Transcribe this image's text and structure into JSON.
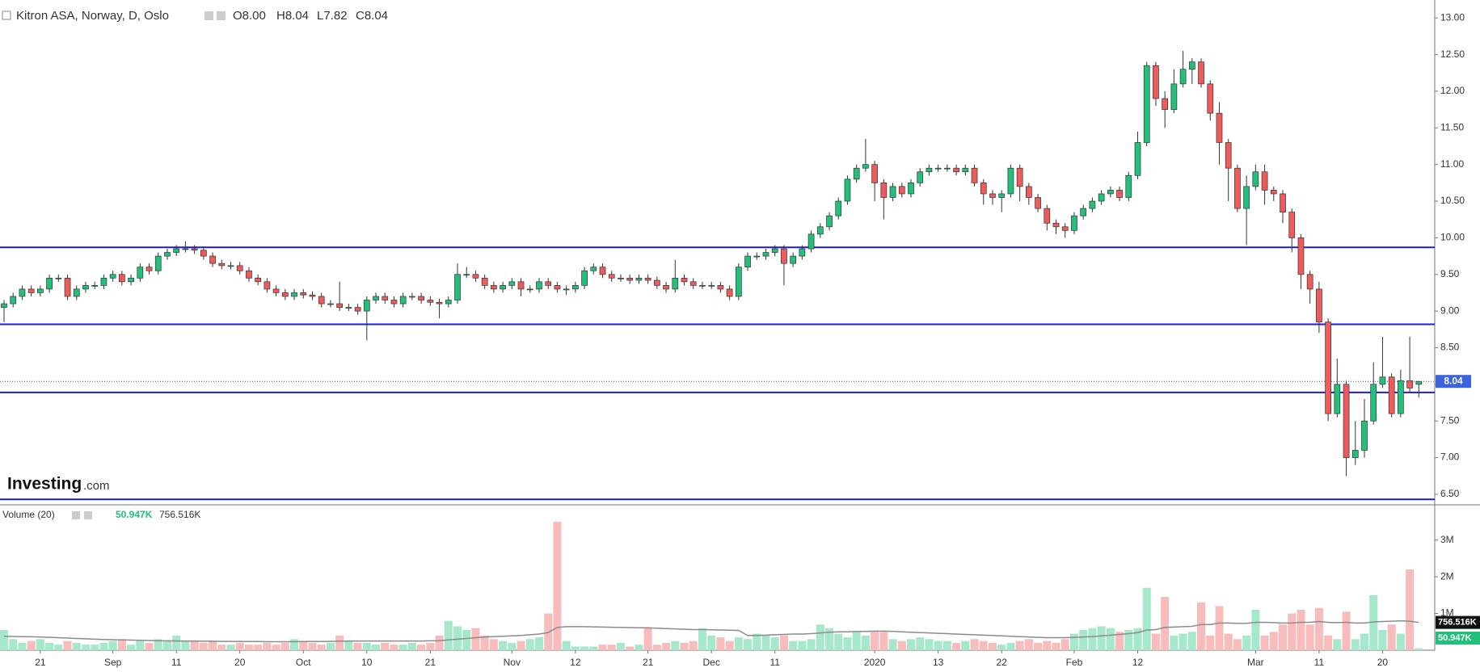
{
  "header": {
    "title": "Kitron ASA, Norway, D, Oslo",
    "ohlc": [
      "O8.00",
      "H8.04",
      "L7.82",
      "C8.04"
    ]
  },
  "logo": {
    "brand": "Investing",
    "suffix": ".com"
  },
  "chart_data": [
    {
      "type": "candlestick",
      "up_color": "#22c07a",
      "down_color": "#ef5a5a",
      "edge_color": "#333333",
      "open": [
        9.05,
        9.1,
        9.2,
        9.3,
        9.25,
        9.3,
        9.45,
        9.45,
        9.2,
        9.3,
        9.35,
        9.35,
        9.45,
        9.5,
        9.4,
        9.45,
        9.6,
        9.55,
        9.75,
        9.8,
        9.85,
        9.85,
        9.83,
        9.75,
        9.65,
        9.62,
        9.62,
        9.55,
        9.45,
        9.4,
        9.3,
        9.25,
        9.2,
        9.25,
        9.22,
        9.2,
        9.1,
        9.1,
        9.05,
        9.05,
        9.0,
        9.15,
        9.2,
        9.15,
        9.1,
        9.2,
        9.2,
        9.15,
        9.12,
        9.1,
        9.15,
        9.5,
        9.5,
        9.45,
        9.35,
        9.3,
        9.35,
        9.4,
        9.3,
        9.3,
        9.4,
        9.35,
        9.3,
        9.3,
        9.35,
        9.55,
        9.6,
        9.5,
        9.45,
        9.45,
        9.42,
        9.45,
        9.42,
        9.35,
        9.3,
        9.45,
        9.4,
        9.35,
        9.35,
        9.35,
        9.3,
        9.2,
        9.6,
        9.75,
        9.75,
        9.8,
        9.85,
        9.65,
        9.75,
        9.85,
        10.05,
        10.15,
        10.3,
        10.5,
        10.8,
        10.95,
        11.0,
        10.75,
        10.55,
        10.7,
        10.6,
        10.75,
        10.9,
        10.95,
        10.95,
        10.95,
        10.9,
        10.95,
        10.75,
        10.6,
        10.55,
        10.6,
        10.95,
        10.7,
        10.55,
        10.4,
        10.2,
        10.15,
        10.1,
        10.3,
        10.4,
        10.5,
        10.6,
        10.65,
        10.55,
        10.85,
        11.3,
        12.35,
        11.9,
        11.75,
        12.1,
        12.3,
        12.4,
        12.1,
        11.7,
        11.3,
        10.95,
        10.4,
        10.7,
        10.9,
        10.65,
        10.6,
        10.35,
        10.0,
        9.5,
        9.3,
        8.85,
        7.6,
        8.0,
        7.0,
        7.1,
        7.5,
        8.0,
        8.1,
        7.6,
        8.05,
        8.0
      ],
      "high": [
        9.15,
        9.25,
        9.35,
        9.35,
        9.35,
        9.5,
        9.5,
        9.5,
        9.35,
        9.4,
        9.4,
        9.5,
        9.55,
        9.55,
        9.5,
        9.65,
        9.65,
        9.8,
        9.85,
        9.9,
        9.95,
        9.9,
        9.88,
        9.8,
        9.7,
        9.67,
        9.67,
        9.6,
        9.5,
        9.45,
        9.35,
        9.3,
        9.3,
        9.3,
        9.27,
        9.25,
        9.15,
        9.4,
        9.1,
        9.1,
        9.2,
        9.25,
        9.25,
        9.2,
        9.25,
        9.25,
        9.25,
        9.2,
        9.17,
        9.2,
        9.65,
        9.6,
        9.55,
        9.5,
        9.4,
        9.4,
        9.45,
        9.45,
        9.35,
        9.45,
        9.45,
        9.4,
        9.35,
        9.4,
        9.6,
        9.65,
        9.65,
        9.55,
        9.5,
        9.5,
        9.5,
        9.5,
        9.47,
        9.4,
        9.7,
        9.5,
        9.45,
        9.4,
        9.4,
        9.4,
        9.35,
        9.65,
        9.8,
        9.8,
        9.85,
        9.9,
        9.9,
        9.8,
        9.9,
        10.1,
        10.2,
        10.35,
        10.55,
        10.85,
        11.0,
        11.35,
        11.05,
        10.8,
        10.75,
        10.75,
        10.8,
        10.95,
        11.0,
        11.0,
        11.0,
        11.0,
        11.0,
        11.0,
        10.8,
        10.65,
        10.65,
        11.0,
        11.0,
        10.75,
        10.6,
        10.45,
        10.25,
        10.2,
        10.35,
        10.45,
        10.55,
        10.65,
        10.7,
        10.7,
        10.9,
        11.45,
        12.4,
        12.4,
        12.0,
        12.3,
        12.55,
        12.45,
        12.45,
        12.15,
        11.85,
        11.35,
        11.0,
        10.85,
        11.0,
        11.0,
        10.7,
        10.65,
        10.4,
        10.05,
        9.55,
        9.4,
        8.9,
        8.35,
        8.05,
        7.5,
        7.8,
        8.3,
        8.65,
        8.15,
        8.2,
        8.65,
        8.04
      ],
      "low": [
        8.85,
        9.05,
        9.15,
        9.2,
        9.2,
        9.25,
        9.4,
        9.15,
        9.15,
        9.25,
        9.3,
        9.3,
        9.4,
        9.35,
        9.35,
        9.4,
        9.5,
        9.5,
        9.7,
        9.75,
        9.8,
        9.78,
        9.7,
        9.6,
        9.57,
        9.57,
        9.5,
        9.4,
        9.35,
        9.25,
        9.2,
        9.15,
        9.15,
        9.17,
        9.15,
        9.05,
        9.05,
        9.0,
        9.0,
        8.95,
        8.6,
        9.1,
        9.1,
        9.05,
        9.05,
        9.15,
        9.1,
        9.07,
        8.9,
        9.05,
        9.1,
        9.45,
        9.4,
        9.3,
        9.25,
        9.25,
        9.3,
        9.2,
        9.25,
        9.25,
        9.3,
        9.25,
        9.22,
        9.25,
        9.3,
        9.5,
        9.45,
        9.4,
        9.4,
        9.37,
        9.37,
        9.37,
        9.3,
        9.25,
        9.25,
        9.35,
        9.3,
        9.3,
        9.3,
        9.25,
        9.15,
        9.15,
        9.55,
        9.7,
        9.7,
        9.75,
        9.35,
        9.6,
        9.7,
        9.8,
        10.0,
        10.1,
        10.25,
        10.45,
        10.75,
        10.9,
        10.5,
        10.25,
        10.5,
        10.55,
        10.55,
        10.7,
        10.85,
        10.9,
        10.9,
        10.85,
        10.85,
        10.7,
        10.45,
        10.45,
        10.35,
        10.55,
        10.5,
        10.45,
        10.35,
        10.1,
        10.05,
        10.0,
        10.05,
        10.25,
        10.35,
        10.45,
        10.55,
        10.5,
        10.5,
        10.8,
        11.25,
        11.8,
        11.5,
        11.7,
        12.05,
        12.1,
        12.05,
        11.6,
        11.0,
        10.5,
        10.35,
        9.9,
        10.65,
        10.45,
        10.5,
        10.2,
        9.8,
        9.3,
        9.1,
        8.7,
        7.5,
        7.55,
        6.75,
        6.9,
        7.0,
        7.45,
        7.95,
        7.55,
        7.55,
        7.9,
        7.82
      ],
      "close": [
        9.1,
        9.2,
        9.3,
        9.25,
        9.3,
        9.45,
        9.45,
        9.2,
        9.3,
        9.35,
        9.35,
        9.45,
        9.5,
        9.4,
        9.45,
        9.6,
        9.55,
        9.75,
        9.8,
        9.85,
        9.85,
        9.83,
        9.75,
        9.65,
        9.62,
        9.62,
        9.55,
        9.45,
        9.4,
        9.3,
        9.25,
        9.2,
        9.25,
        9.22,
        9.2,
        9.1,
        9.1,
        9.05,
        9.05,
        9.0,
        9.15,
        9.2,
        9.15,
        9.1,
        9.2,
        9.2,
        9.15,
        9.12,
        9.1,
        9.15,
        9.5,
        9.5,
        9.45,
        9.35,
        9.3,
        9.35,
        9.4,
        9.3,
        9.3,
        9.4,
        9.35,
        9.3,
        9.3,
        9.35,
        9.55,
        9.6,
        9.5,
        9.45,
        9.45,
        9.42,
        9.45,
        9.42,
        9.35,
        9.3,
        9.45,
        9.4,
        9.35,
        9.35,
        9.35,
        9.3,
        9.2,
        9.6,
        9.75,
        9.75,
        9.8,
        9.85,
        9.65,
        9.75,
        9.85,
        10.05,
        10.15,
        10.3,
        10.5,
        10.8,
        10.95,
        11.0,
        10.75,
        10.55,
        10.7,
        10.6,
        10.75,
        10.9,
        10.95,
        10.95,
        10.95,
        10.9,
        10.95,
        10.75,
        10.6,
        10.55,
        10.6,
        10.95,
        10.7,
        10.55,
        10.4,
        10.2,
        10.15,
        10.1,
        10.3,
        10.4,
        10.5,
        10.6,
        10.65,
        10.55,
        10.85,
        11.3,
        12.35,
        11.9,
        11.75,
        12.1,
        12.3,
        12.4,
        12.1,
        11.7,
        11.3,
        10.95,
        10.4,
        10.7,
        10.9,
        10.65,
        10.6,
        10.35,
        10.0,
        9.5,
        9.3,
        8.85,
        7.6,
        8.0,
        7.0,
        7.1,
        7.5,
        8.0,
        8.1,
        7.6,
        8.05,
        7.95,
        8.04
      ],
      "last_label": "8.04",
      "last_color": "#3b63dc",
      "levels": [
        9.87,
        8.82,
        7.89,
        6.43
      ],
      "level_color": "#1c1cdc",
      "ylim": [
        6.4,
        13.245
      ],
      "yticks": [
        {
          "value": 6.5,
          "label": "6.50"
        },
        {
          "value": 7.0,
          "label": "7.00"
        },
        {
          "value": 7.5,
          "label": "7.50"
        },
        {
          "value": 8.0,
          "label": "8.00"
        },
        {
          "value": 8.5,
          "label": "8.50"
        },
        {
          "value": 9.0,
          "label": "9.00"
        },
        {
          "value": 9.5,
          "label": "9.50"
        },
        {
          "value": 10.0,
          "label": "10.00"
        },
        {
          "value": 10.5,
          "label": "10.50"
        },
        {
          "value": 11.0,
          "label": "11.00"
        },
        {
          "value": 11.5,
          "label": "11.50"
        },
        {
          "value": 12.0,
          "label": "12.00"
        },
        {
          "value": 12.5,
          "label": "12.50"
        },
        {
          "value": 13.0,
          "label": "13.00"
        }
      ],
      "xticks": [
        {
          "value": 4,
          "label": "21"
        },
        {
          "value": 12,
          "label": "Sep"
        },
        {
          "value": 19,
          "label": "11"
        },
        {
          "value": 26,
          "label": "20"
        },
        {
          "value": 33,
          "label": "Oct"
        },
        {
          "value": 40,
          "label": "10"
        },
        {
          "value": 47,
          "label": "21"
        },
        {
          "value": 56,
          "label": "Nov"
        },
        {
          "value": 63,
          "label": "12"
        },
        {
          "value": 71,
          "label": "21"
        },
        {
          "value": 78,
          "label": "Dec"
        },
        {
          "value": 85,
          "label": "11"
        },
        {
          "value": 96,
          "label": "2020"
        },
        {
          "value": 103,
          "label": "13"
        },
        {
          "value": 110,
          "label": "22"
        },
        {
          "value": 118,
          "label": "Feb"
        },
        {
          "value": 125,
          "label": "12"
        },
        {
          "value": 138,
          "label": "Mar"
        },
        {
          "value": 145,
          "label": "11"
        },
        {
          "value": 152,
          "label": "20"
        }
      ]
    },
    {
      "type": "bar",
      "title": "Volume (20)",
      "up_color": "#a6e8cc",
      "down_color": "#f8bcbc",
      "values": [
        550,
        300,
        200,
        250,
        300,
        200,
        150,
        250,
        200,
        150,
        150,
        200,
        250,
        300,
        150,
        250,
        200,
        300,
        250,
        400,
        250,
        250,
        200,
        250,
        150,
        150,
        200,
        150,
        150,
        200,
        150,
        200,
        300,
        250,
        200,
        150,
        200,
        400,
        250,
        200,
        200,
        150,
        200,
        150,
        150,
        200,
        150,
        200,
        400,
        800,
        650,
        550,
        600,
        400,
        300,
        250,
        200,
        250,
        300,
        350,
        1000,
        3500,
        250,
        100,
        100,
        100,
        150,
        150,
        200,
        100,
        150,
        600,
        150,
        200,
        250,
        200,
        250,
        600,
        400,
        350,
        250,
        350,
        300,
        450,
        400,
        350,
        400,
        250,
        250,
        300,
        700,
        600,
        450,
        350,
        500,
        400,
        500,
        500,
        300,
        250,
        300,
        350,
        300,
        250,
        250,
        200,
        250,
        300,
        250,
        200,
        150,
        200,
        250,
        300,
        200,
        250,
        200,
        300,
        450,
        550,
        600,
        650,
        600,
        500,
        550,
        600,
        1700,
        450,
        1450,
        400,
        450,
        500,
        1300,
        400,
        1200,
        450,
        300,
        400,
        1100,
        400,
        500,
        700,
        1000,
        1100,
        700,
        1150,
        400,
        300,
        1050,
        300,
        450,
        1500,
        550,
        700,
        450,
        2200,
        50.947
      ],
      "value_label": "50.947K",
      "value_label_color": "#22c07a",
      "ma": {
        "color": "#8c8c8c",
        "label": "756.516K",
        "values": [
          380,
          375,
          370,
          365,
          360,
          350,
          340,
          330,
          320,
          310,
          300,
          290,
          285,
          280,
          275,
          270,
          265,
          260,
          255,
          250,
          250,
          250,
          245,
          245,
          240,
          240,
          235,
          235,
          235,
          230,
          230,
          230,
          230,
          235,
          235,
          235,
          240,
          245,
          250,
          250,
          250,
          250,
          250,
          250,
          250,
          250,
          250,
          255,
          260,
          280,
          300,
          320,
          340,
          360,
          370,
          380,
          390,
          400,
          420,
          440,
          480,
          620,
          640,
          640,
          640,
          635,
          630,
          625,
          620,
          615,
          610,
          610,
          600,
          590,
          580,
          570,
          560,
          560,
          555,
          550,
          545,
          540,
          400,
          400,
          410,
          420,
          430,
          440,
          440,
          450,
          470,
          490,
          500,
          500,
          510,
          510,
          520,
          520,
          510,
          500,
          490,
          480,
          470,
          460,
          450,
          440,
          430,
          420,
          410,
          400,
          390,
          380,
          370,
          360,
          350,
          340,
          340,
          340,
          350,
          360,
          370,
          390,
          410,
          430,
          450,
          480,
          550,
          560,
          620,
          630,
          640,
          650,
          700,
          700,
          740,
          740,
          730,
          730,
          760,
          760,
          750,
          740,
          740,
          760,
          760,
          780,
          760,
          750,
          760,
          740,
          740,
          770,
          780,
          790,
          800,
          790,
          756.516
        ]
      },
      "ylim": [
        0,
        3850
      ],
      "yticks": [
        {
          "value": 1000,
          "label": "1M"
        },
        {
          "value": 2000,
          "label": "2M"
        },
        {
          "value": 3000,
          "label": "3M"
        }
      ]
    }
  ]
}
